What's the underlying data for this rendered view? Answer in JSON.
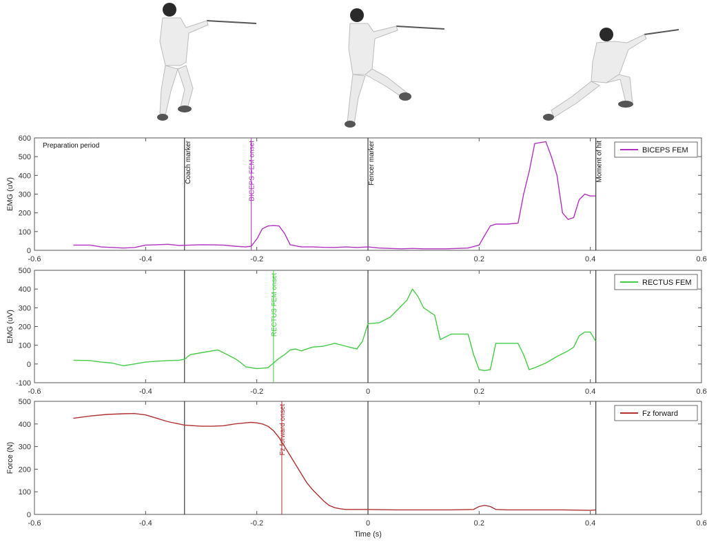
{
  "chart_data": [
    {
      "type": "line",
      "ylabel": "EMG (uV)",
      "xlabel": "",
      "xlim": [
        -0.6,
        0.6
      ],
      "ylim": [
        0,
        600
      ],
      "xticks": [
        -0.6,
        -0.4,
        -0.2,
        0,
        0.2,
        0.4,
        0.6
      ],
      "xtick_labels": [
        "-0.6",
        "-0.4",
        "-0.2",
        "0",
        "0.2",
        "0.4",
        "0.6"
      ],
      "yticks": [
        0,
        100,
        200,
        300,
        400,
        500,
        600
      ],
      "ytick_labels": [
        "0",
        "100",
        "200",
        "300",
        "400",
        "500",
        "600"
      ],
      "legend": "top-right",
      "annotation": "Preparation period",
      "series": [
        {
          "name": "BICEPS FEM",
          "color": "#b030c0",
          "x": [
            -0.53,
            -0.5,
            -0.48,
            -0.46,
            -0.44,
            -0.42,
            -0.4,
            -0.38,
            -0.36,
            -0.34,
            -0.32,
            -0.3,
            -0.28,
            -0.26,
            -0.24,
            -0.22,
            -0.21,
            -0.2,
            -0.19,
            -0.18,
            -0.17,
            -0.16,
            -0.15,
            -0.14,
            -0.12,
            -0.1,
            -0.08,
            -0.06,
            -0.04,
            -0.02,
            0,
            0.02,
            0.04,
            0.06,
            0.08,
            0.1,
            0.12,
            0.14,
            0.16,
            0.18,
            0.2,
            0.21,
            0.22,
            0.23,
            0.25,
            0.27,
            0.28,
            0.29,
            0.3,
            0.32,
            0.33,
            0.34,
            0.35,
            0.36,
            0.37,
            0.38,
            0.39,
            0.4,
            0.41
          ],
          "y": [
            28,
            28,
            18,
            15,
            12,
            15,
            28,
            30,
            32,
            26,
            28,
            30,
            29,
            28,
            22,
            18,
            22,
            60,
            115,
            130,
            132,
            130,
            90,
            30,
            18,
            18,
            16,
            15,
            18,
            15,
            18,
            12,
            10,
            8,
            10,
            8,
            8,
            8,
            10,
            12,
            28,
            80,
            130,
            140,
            140,
            145,
            300,
            420,
            570,
            580,
            500,
            400,
            200,
            165,
            175,
            270,
            300,
            290,
            290
          ]
        }
      ]
    },
    {
      "type": "line",
      "ylabel": "EMG (uV)",
      "xlabel": "",
      "xlim": [
        -0.6,
        0.6
      ],
      "ylim": [
        -100,
        500
      ],
      "xticks": [
        -0.6,
        -0.4,
        -0.2,
        0,
        0.2,
        0.4,
        0.6
      ],
      "xtick_labels": [
        "-0.6",
        "-0.4",
        "-0.2",
        "0",
        "0.2",
        "0.4",
        "0.6"
      ],
      "yticks": [
        -100,
        0,
        100,
        200,
        300,
        400,
        500
      ],
      "ytick_labels": [
        "-100",
        "0",
        "100",
        "200",
        "300",
        "400",
        "500"
      ],
      "legend": "top-right",
      "series": [
        {
          "name": "RECTUS FEM",
          "color": "#44cc44",
          "x": [
            -0.53,
            -0.5,
            -0.48,
            -0.46,
            -0.44,
            -0.42,
            -0.4,
            -0.38,
            -0.36,
            -0.34,
            -0.33,
            -0.32,
            -0.3,
            -0.28,
            -0.27,
            -0.26,
            -0.25,
            -0.24,
            -0.23,
            -0.22,
            -0.2,
            -0.18,
            -0.17,
            -0.16,
            -0.15,
            -0.14,
            -0.13,
            -0.12,
            -0.1,
            -0.08,
            -0.06,
            -0.04,
            -0.02,
            -0.01,
            0,
            0.02,
            0.04,
            0.06,
            0.07,
            0.08,
            0.09,
            0.1,
            0.12,
            0.13,
            0.15,
            0.17,
            0.18,
            0.19,
            0.2,
            0.21,
            0.22,
            0.23,
            0.25,
            0.26,
            0.27,
            0.28,
            0.29,
            0.3,
            0.32,
            0.34,
            0.36,
            0.37,
            0.38,
            0.39,
            0.4,
            0.41
          ],
          "y": [
            20,
            18,
            10,
            5,
            -10,
            0,
            10,
            15,
            18,
            20,
            25,
            50,
            60,
            70,
            75,
            60,
            45,
            30,
            10,
            -15,
            -25,
            -20,
            5,
            30,
            50,
            75,
            80,
            70,
            90,
            95,
            110,
            95,
            80,
            120,
            215,
            220,
            250,
            310,
            340,
            400,
            360,
            300,
            260,
            130,
            160,
            160,
            160,
            50,
            -30,
            -35,
            -30,
            110,
            110,
            110,
            110,
            50,
            -30,
            -20,
            5,
            40,
            70,
            90,
            150,
            170,
            170,
            120
          ]
        }
      ]
    },
    {
      "type": "line",
      "ylabel": "Force (N)",
      "xlabel": "Time (s)",
      "xlim": [
        -0.6,
        0.6
      ],
      "ylim": [
        0,
        500
      ],
      "xticks": [
        -0.6,
        -0.4,
        -0.2,
        0,
        0.2,
        0.4,
        0.6
      ],
      "xtick_labels": [
        "-0.6",
        "-0.4",
        "-0.2",
        "0",
        "0.2",
        "0.4",
        "0.6"
      ],
      "yticks": [
        0,
        100,
        200,
        300,
        400,
        500
      ],
      "ytick_labels": [
        "0",
        "100",
        "200",
        "300",
        "400",
        "500"
      ],
      "legend": "top-right",
      "series": [
        {
          "name": "Fz forward",
          "color": "#b03030",
          "x": [
            -0.53,
            -0.5,
            -0.47,
            -0.44,
            -0.42,
            -0.4,
            -0.38,
            -0.36,
            -0.34,
            -0.33,
            -0.3,
            -0.28,
            -0.26,
            -0.24,
            -0.22,
            -0.21,
            -0.2,
            -0.19,
            -0.18,
            -0.17,
            -0.16,
            -0.15,
            -0.14,
            -0.13,
            -0.12,
            -0.11,
            -0.1,
            -0.09,
            -0.08,
            -0.07,
            -0.06,
            -0.05,
            -0.04,
            -0.02,
            0,
            0.05,
            0.1,
            0.15,
            0.19,
            0.2,
            0.21,
            0.22,
            0.23,
            0.25,
            0.3,
            0.35,
            0.4,
            0.41
          ],
          "y": [
            425,
            435,
            442,
            445,
            446,
            440,
            425,
            410,
            400,
            395,
            390,
            390,
            392,
            400,
            405,
            407,
            405,
            400,
            390,
            370,
            340,
            300,
            260,
            220,
            180,
            140,
            110,
            85,
            60,
            40,
            30,
            25,
            22,
            22,
            22,
            20,
            20,
            20,
            22,
            35,
            40,
            35,
            22,
            20,
            20,
            20,
            18,
            20
          ]
        }
      ]
    }
  ],
  "markers": [
    {
      "label": "Coach marker",
      "x": -0.33,
      "color": "#111111"
    },
    {
      "label": "Fencer marker",
      "x": 0,
      "color": "#111111"
    },
    {
      "label": "Moment of hit",
      "x": 0.41,
      "color": "#111111"
    }
  ],
  "onsets": [
    {
      "label": "BICEPS FEM onset",
      "x": -0.21,
      "panel": 0,
      "color": "#b030c0"
    },
    {
      "label": "RECTUS FEM onset",
      "x": -0.17,
      "panel": 1,
      "color": "#44cc44"
    },
    {
      "label": "Fz forward onset",
      "x": -0.155,
      "panel": 2,
      "color": "#b03030"
    }
  ]
}
